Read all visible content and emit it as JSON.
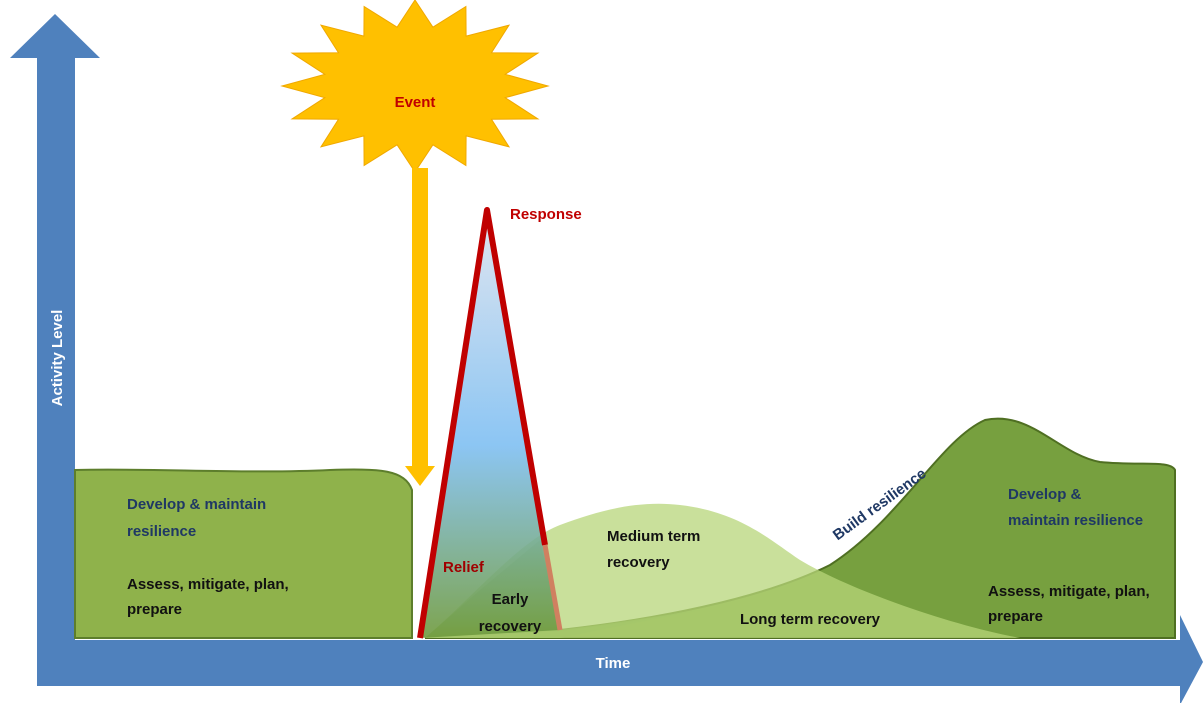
{
  "diagram": {
    "event": "Event",
    "response": "Response",
    "y_axis": "Activity Level",
    "x_axis": "Time",
    "left_phase": {
      "heading": [
        "Develop & maintain",
        "resilience"
      ],
      "tasks": [
        "Assess, mitigate, plan,",
        "prepare"
      ]
    },
    "relief": "Relief",
    "early_recovery": [
      "Early",
      "recovery"
    ],
    "medium_term_recovery": [
      "Medium term",
      "recovery"
    ],
    "build_resilience": "Build resilience",
    "long_term_recovery": "Long term recovery",
    "right_phase": {
      "heading": [
        "Develop &",
        "maintain resilience"
      ],
      "tasks": [
        "Assess, mitigate, plan,",
        "prepare"
      ]
    }
  }
}
